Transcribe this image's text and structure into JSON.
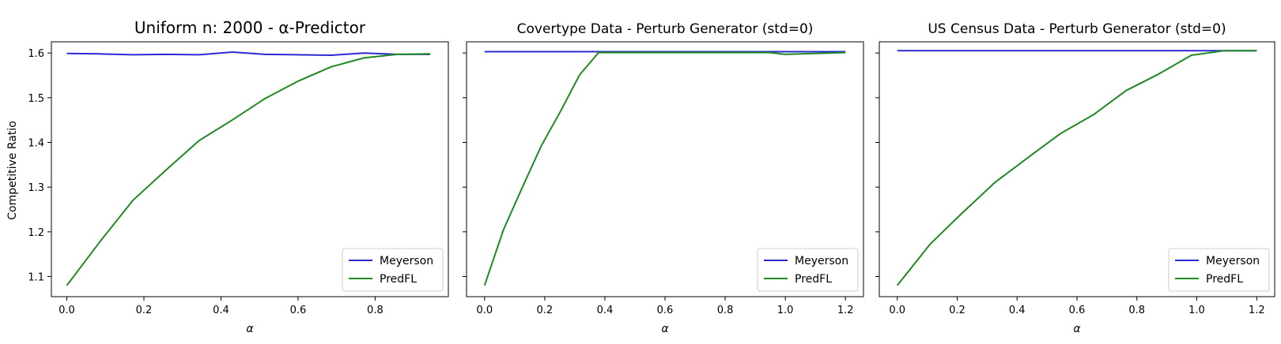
{
  "ylabel": "Competitive Ratio",
  "colors": {
    "meyerson": "#2b2bd6",
    "predfl": "#1f8a1f",
    "axis": "#000000"
  },
  "chart_data": [
    {
      "type": "line",
      "title": "Uniform n: 2000 - α-Predictor",
      "xlabel": "α",
      "xlim": [
        -0.04,
        0.99
      ],
      "ylim": [
        1.055,
        1.625
      ],
      "xticks": [
        "0.0",
        "0.2",
        "0.4",
        "0.6",
        "0.8"
      ],
      "yticks": [
        "1.1",
        "1.2",
        "1.3",
        "1.4",
        "1.5",
        "1.6"
      ],
      "legend": "lower-right",
      "series": [
        {
          "name": "Meyerson",
          "x": [
            0.0,
            0.086,
            0.171,
            0.257,
            0.343,
            0.429,
            0.514,
            0.6,
            0.686,
            0.771,
            0.857,
            0.943
          ],
          "y": [
            1.599,
            1.598,
            1.596,
            1.597,
            1.596,
            1.602,
            1.597,
            1.596,
            1.595,
            1.6,
            1.597,
            1.597
          ]
        },
        {
          "name": "PredFL",
          "x": [
            0.0,
            0.086,
            0.171,
            0.257,
            0.343,
            0.429,
            0.514,
            0.6,
            0.686,
            0.771,
            0.857,
            0.943
          ],
          "y": [
            1.08,
            1.178,
            1.27,
            1.338,
            1.404,
            1.45,
            1.498,
            1.537,
            1.569,
            1.589,
            1.597,
            1.598
          ]
        }
      ]
    },
    {
      "type": "line",
      "title": "Covertype Data - Perturb Generator (std=0)",
      "xlabel": "α",
      "xlim": [
        -0.06,
        1.26
      ],
      "ylim": [
        1.055,
        1.625
      ],
      "xticks": [
        "0.0",
        "0.2",
        "0.4",
        "0.6",
        "0.8",
        "1.0",
        "1.2"
      ],
      "yticks": [
        "",
        "",
        "",
        "",
        "",
        ""
      ],
      "legend": "lower-right",
      "series": [
        {
          "name": "Meyerson",
          "x": [
            0.0,
            0.2,
            0.4,
            0.6,
            0.8,
            1.0,
            1.2
          ],
          "y": [
            1.603,
            1.603,
            1.603,
            1.603,
            1.603,
            1.603,
            1.603
          ]
        },
        {
          "name": "PredFL",
          "x": [
            0.0,
            0.063,
            0.126,
            0.189,
            0.253,
            0.316,
            0.379,
            0.5,
            0.7,
            0.947,
            1.0,
            1.1,
            1.2
          ],
          "y": [
            1.08,
            1.205,
            1.3,
            1.393,
            1.47,
            1.551,
            1.601,
            1.601,
            1.601,
            1.601,
            1.597,
            1.599,
            1.601
          ]
        }
      ]
    },
    {
      "type": "line",
      "title": "US Census Data - Perturb Generator (std=0)",
      "xlabel": "α",
      "xlim": [
        -0.06,
        1.26
      ],
      "ylim": [
        1.055,
        1.625
      ],
      "xticks": [
        "0.0",
        "0.2",
        "0.4",
        "0.6",
        "0.8",
        "1.0",
        "1.2"
      ],
      "yticks": [
        "",
        "",
        "",
        "",
        "",
        ""
      ],
      "legend": "lower-right",
      "series": [
        {
          "name": "Meyerson",
          "x": [
            0.0,
            0.2,
            0.4,
            0.6,
            0.8,
            1.0,
            1.2
          ],
          "y": [
            1.605,
            1.605,
            1.605,
            1.605,
            1.605,
            1.605,
            1.605
          ]
        },
        {
          "name": "PredFL",
          "x": [
            0.0,
            0.109,
            0.218,
            0.327,
            0.436,
            0.545,
            0.655,
            0.764,
            0.873,
            0.982,
            1.091,
            1.2
          ],
          "y": [
            1.08,
            1.172,
            1.243,
            1.311,
            1.366,
            1.42,
            1.462,
            1.516,
            1.553,
            1.595,
            1.605,
            1.605
          ]
        }
      ]
    }
  ]
}
